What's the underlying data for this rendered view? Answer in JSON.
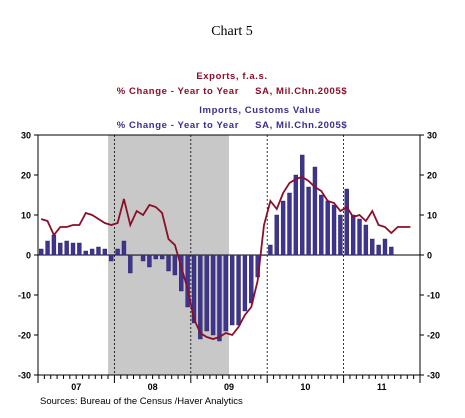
{
  "chart_data": {
    "type": "bar+line",
    "title": "Chart 5",
    "legend": [
      {
        "series": "exports",
        "line1": "Exports, f.a.s.",
        "line2": "% Change - Year to Year     SA, Mil.Chn.2005$",
        "color": "#8b0f2a"
      },
      {
        "series": "imports",
        "line1": "Imports, Customs Value",
        "line2": "% Change - Year to Year     SA, Mil.Chn.2005$",
        "color": "#3b2f8c"
      }
    ],
    "source": "Sources:  Bureau of the Census /Haver Analytics",
    "ylim": [
      -30,
      30
    ],
    "yticks": [
      -30,
      -20,
      -10,
      0,
      10,
      20,
      30
    ],
    "year_labels": [
      "07",
      "08",
      "09",
      "10",
      "11"
    ],
    "recession_shading": {
      "start": "2007-12",
      "end": "2009-06"
    },
    "x_start": "2007-01",
    "series": [
      {
        "name": "Imports, Customs Value",
        "kind": "bar",
        "color": "#3f3591",
        "values": [
          1.5,
          3.5,
          5,
          3,
          3.5,
          3,
          3,
          1,
          1.5,
          2,
          1.5,
          -1.5,
          1.5,
          3.5,
          -4.5,
          0,
          -1.5,
          -3,
          -1,
          -1,
          -4,
          -5,
          -9,
          -13,
          -17,
          -21,
          -19,
          -20,
          -21.5,
          -19,
          -17.5,
          -17.5,
          -14,
          -12,
          -5.5,
          0,
          2.5,
          10,
          13.5,
          15.5,
          20,
          25,
          17,
          22,
          15,
          13.5,
          12.5,
          10,
          16.5,
          10,
          9,
          7.5,
          4,
          2.5,
          4,
          2
        ]
      },
      {
        "name": "Exports, f.a.s.",
        "kind": "line",
        "color": "#8b0f2a",
        "values": [
          9,
          8.5,
          5,
          7,
          7,
          7.5,
          7.5,
          10.5,
          10,
          9,
          8,
          7.5,
          8,
          14,
          7.5,
          11,
          10,
          12.5,
          12,
          10.5,
          4,
          2.5,
          -3,
          -8.5,
          -16,
          -19.5,
          -20.5,
          -21,
          -20.5,
          -19.5,
          -20,
          -18,
          -15,
          -13,
          -6.5,
          7.5,
          13.5,
          11.5,
          15.5,
          18,
          19,
          19.5,
          18.5,
          17,
          16,
          13.5,
          13,
          11,
          12,
          9.5,
          10,
          8.5,
          11,
          7.5,
          7,
          5.5,
          7,
          7,
          7
        ]
      }
    ]
  }
}
